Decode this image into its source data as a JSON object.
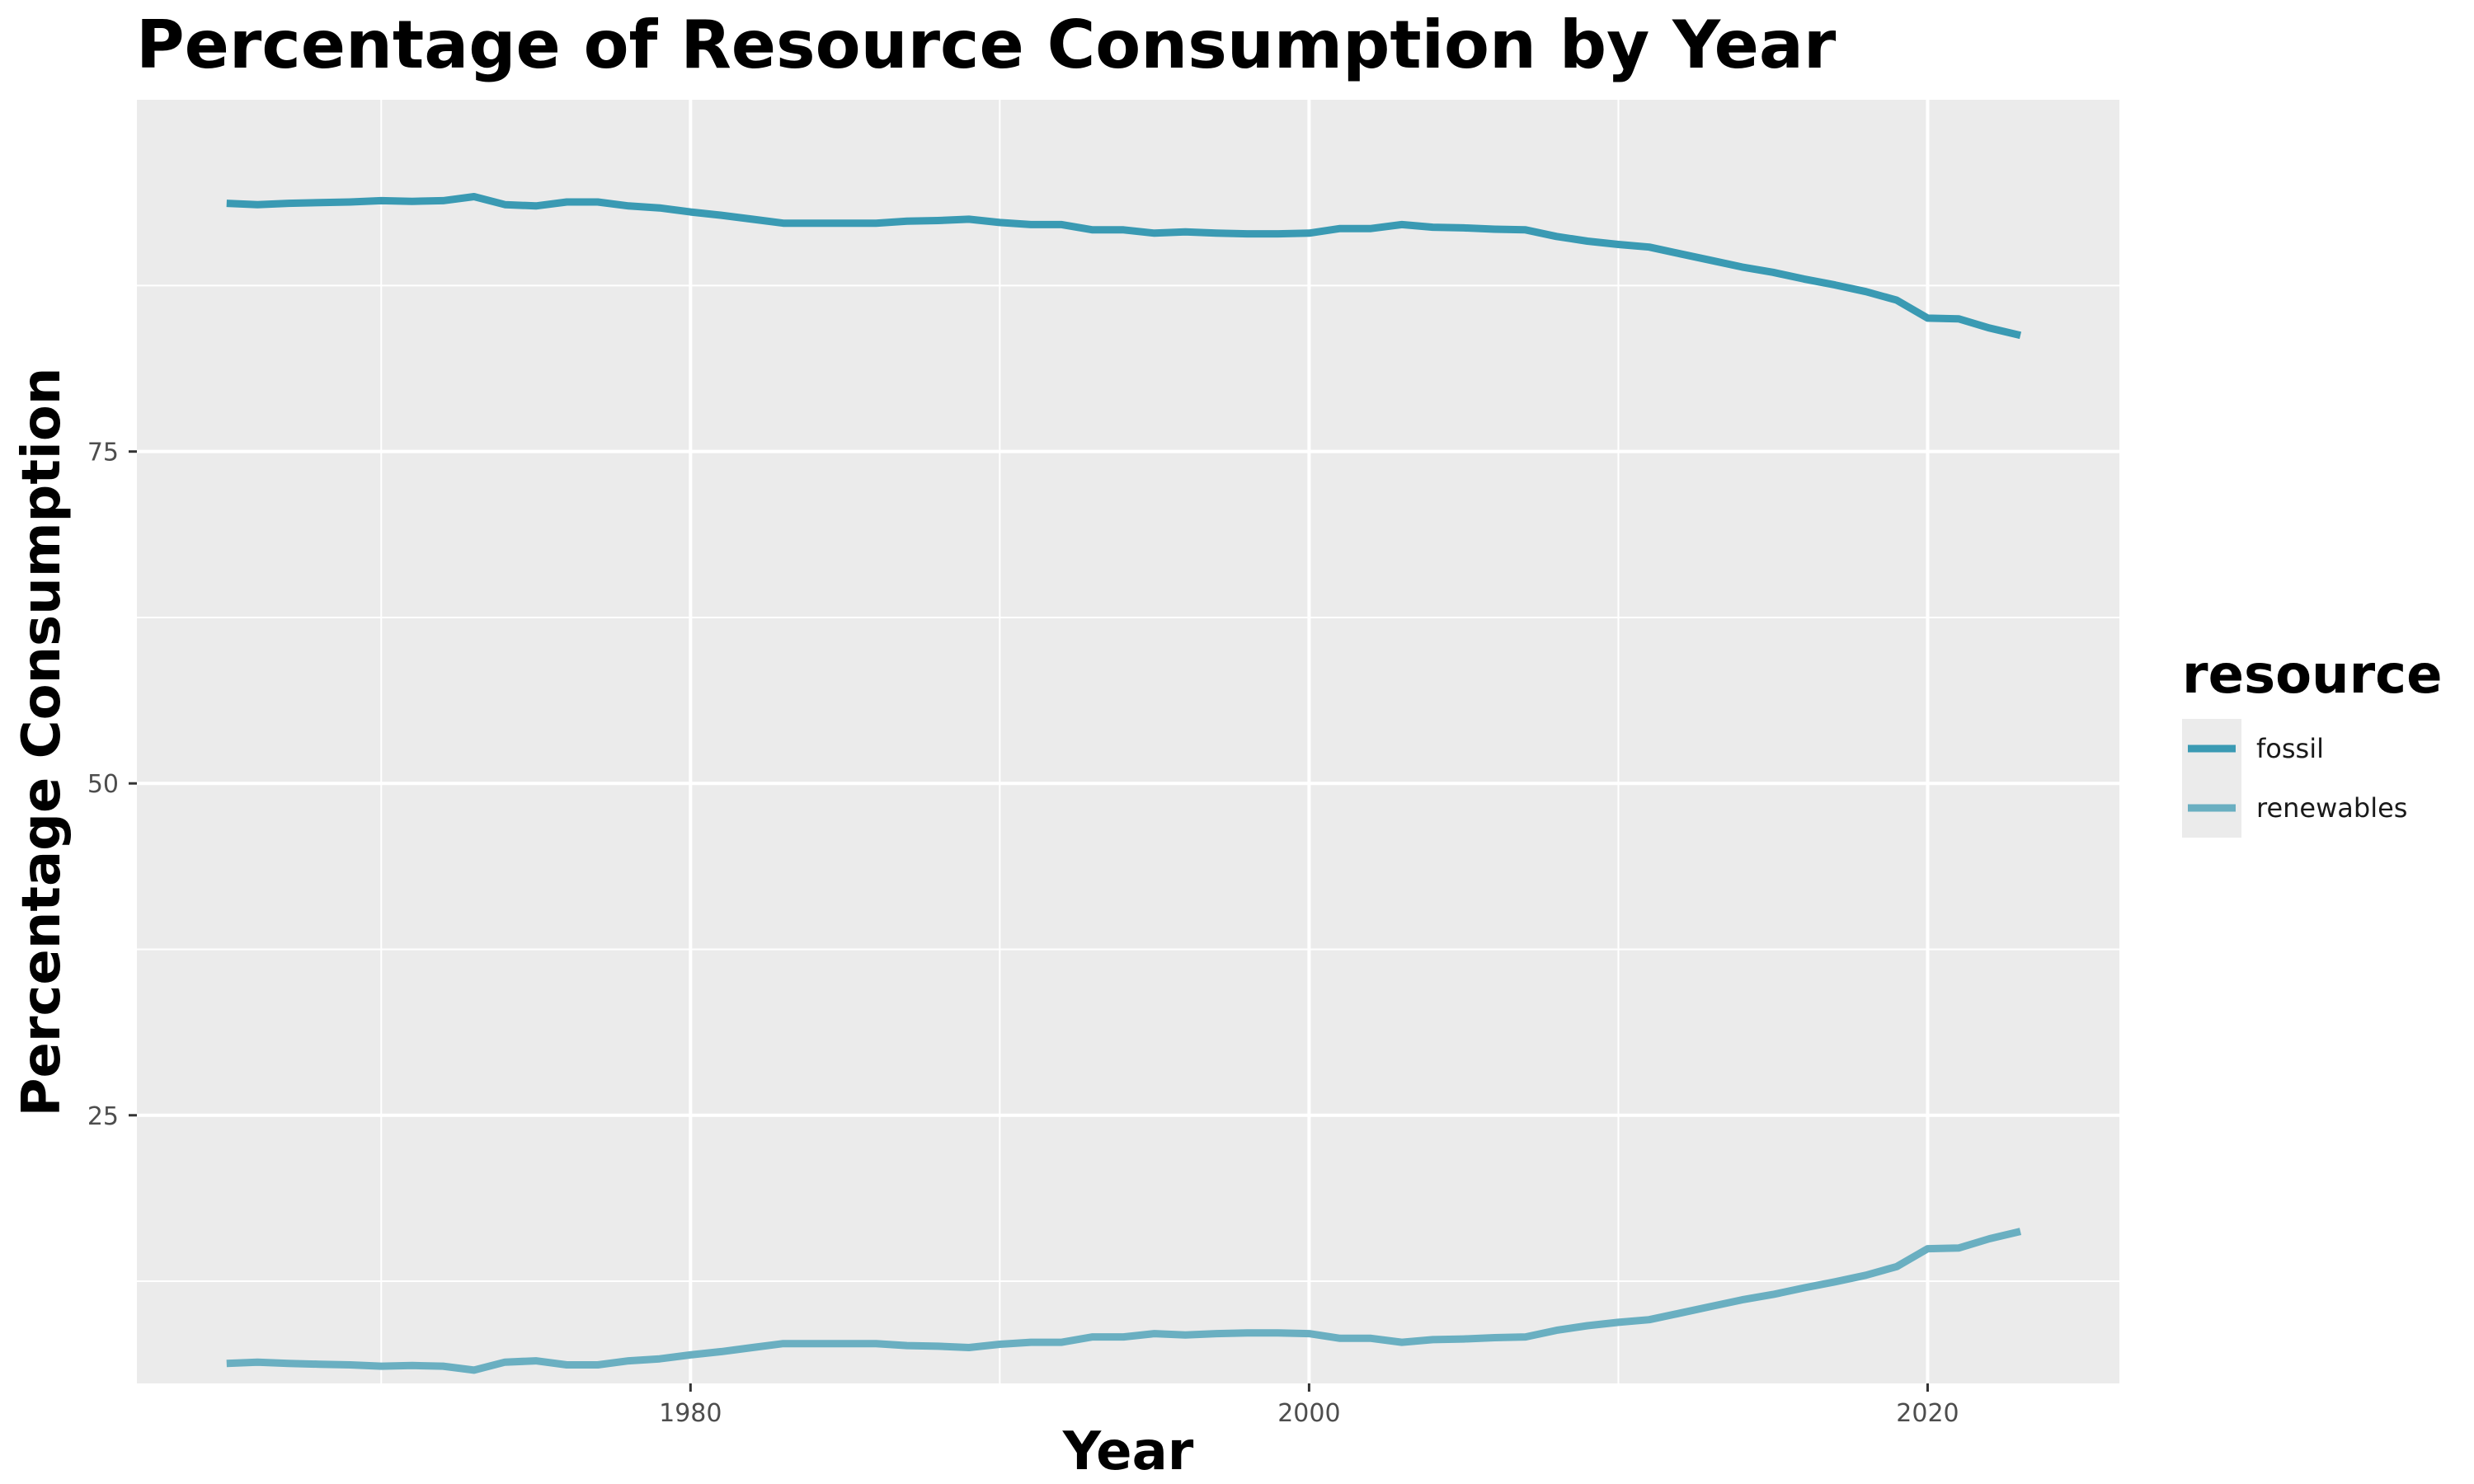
{
  "chart_data": {
    "type": "line",
    "title": "Percentage of Resource Consumption by Year",
    "xlabel": "Year",
    "ylabel": "Percentage Consumption",
    "xlim": [
      1962.1,
      2026.2
    ],
    "ylim": [
      4.8,
      101.5
    ],
    "x_ticks": [
      1980,
      2000,
      2020
    ],
    "y_ticks": [
      25,
      50,
      75
    ],
    "grid": true,
    "legend": {
      "title": "resource",
      "placement": "right"
    },
    "x": [
      1965,
      1966,
      1967,
      1968,
      1969,
      1970,
      1971,
      1972,
      1973,
      1974,
      1975,
      1976,
      1977,
      1978,
      1979,
      1980,
      1981,
      1982,
      1983,
      1984,
      1985,
      1986,
      1987,
      1988,
      1989,
      1990,
      1991,
      1992,
      1993,
      1994,
      1995,
      1996,
      1997,
      1998,
      1999,
      2000,
      2001,
      2002,
      2003,
      2004,
      2005,
      2006,
      2007,
      2008,
      2009,
      2010,
      2011,
      2012,
      2013,
      2014,
      2015,
      2016,
      2017,
      2018,
      2019,
      2020,
      2021,
      2022,
      2023
    ],
    "series": [
      {
        "name": "fossil",
        "color": "#3a9ab3",
        "values": [
          93.7,
          93.6,
          93.7,
          93.75,
          93.8,
          93.9,
          93.85,
          93.9,
          94.2,
          93.6,
          93.5,
          93.8,
          93.8,
          93.5,
          93.35,
          93.05,
          92.8,
          92.5,
          92.2,
          92.2,
          92.2,
          92.2,
          92.35,
          92.4,
          92.5,
          92.25,
          92.1,
          92.1,
          91.7,
          91.7,
          91.45,
          91.55,
          91.45,
          91.4,
          91.4,
          91.45,
          91.8,
          91.8,
          92.1,
          91.9,
          91.85,
          91.75,
          91.7,
          91.2,
          90.85,
          90.6,
          90.4,
          89.9,
          89.4,
          88.9,
          88.5,
          88.0,
          87.55,
          87.05,
          86.4,
          85.05,
          85.0,
          84.3,
          83.75
        ]
      },
      {
        "name": "renewables",
        "color": "#6aafc1",
        "values": [
          6.3,
          6.4,
          6.3,
          6.25,
          6.2,
          6.1,
          6.15,
          6.1,
          5.8,
          6.4,
          6.5,
          6.2,
          6.2,
          6.5,
          6.65,
          6.95,
          7.2,
          7.5,
          7.8,
          7.8,
          7.8,
          7.8,
          7.65,
          7.6,
          7.5,
          7.75,
          7.9,
          7.9,
          8.3,
          8.3,
          8.55,
          8.45,
          8.55,
          8.6,
          8.6,
          8.55,
          8.2,
          8.2,
          7.9,
          8.1,
          8.15,
          8.25,
          8.3,
          8.8,
          9.15,
          9.4,
          9.6,
          10.1,
          10.6,
          11.1,
          11.5,
          12.0,
          12.45,
          12.95,
          13.6,
          14.95,
          15.0,
          15.7,
          16.25
        ]
      }
    ]
  }
}
